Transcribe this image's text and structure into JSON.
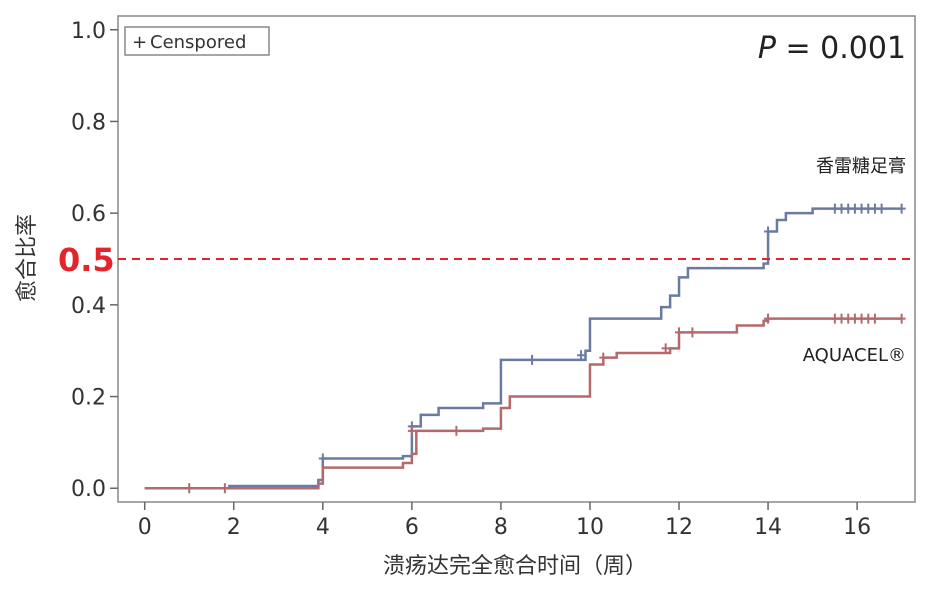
{
  "chart_data": {
    "type": "line",
    "step": true,
    "xlabel": "溃疡达完全愈合时间（周）",
    "ylabel": "愈合比率",
    "xlim": [
      -0.6,
      17.3
    ],
    "ylim": [
      -0.03,
      1.03
    ],
    "xticks": [
      "0",
      "2",
      "4",
      "6",
      "8",
      "10",
      "12",
      "14",
      "16"
    ],
    "yticks": [
      "0.0",
      "0.2",
      "0.4",
      "0.6",
      "0.8",
      "1.0"
    ],
    "grid": false,
    "legend": {
      "placement": "top-left",
      "text": "Censpored",
      "marker": "+"
    },
    "annotation": {
      "p_label": "P",
      "p_text": " = 0.001"
    },
    "reference_line": {
      "y": 0.5,
      "label": "0.5",
      "color": "#e3242b",
      "style": "dashed"
    },
    "series": [
      {
        "name": "香雷糖足膏",
        "color": "#6a7aa3",
        "steps": [
          [
            0,
            0.0
          ],
          [
            1.9,
            0.005
          ],
          [
            3.9,
            0.018
          ],
          [
            4.0,
            0.065
          ],
          [
            5.8,
            0.07
          ],
          [
            6.0,
            0.135
          ],
          [
            6.2,
            0.16
          ],
          [
            6.6,
            0.175
          ],
          [
            7.6,
            0.185
          ],
          [
            8.0,
            0.28
          ],
          [
            9.9,
            0.3
          ],
          [
            10.0,
            0.37
          ],
          [
            11.6,
            0.395
          ],
          [
            11.8,
            0.42
          ],
          [
            12.0,
            0.46
          ],
          [
            12.2,
            0.48
          ],
          [
            13.9,
            0.49
          ],
          [
            14.0,
            0.56
          ],
          [
            14.2,
            0.585
          ],
          [
            14.4,
            0.6
          ],
          [
            15.0,
            0.61
          ],
          [
            17.0,
            0.61
          ]
        ],
        "censored": [
          [
            4.0,
            0.065
          ],
          [
            6.0,
            0.135
          ],
          [
            8.7,
            0.28
          ],
          [
            9.8,
            0.29
          ],
          [
            14.0,
            0.56
          ],
          [
            15.5,
            0.61
          ],
          [
            15.65,
            0.61
          ],
          [
            15.8,
            0.61
          ],
          [
            15.95,
            0.61
          ],
          [
            16.1,
            0.61
          ],
          [
            16.25,
            0.61
          ],
          [
            16.4,
            0.61
          ],
          [
            16.55,
            0.61
          ],
          [
            17.0,
            0.61
          ]
        ]
      },
      {
        "name": "AQUACEL®",
        "color": "#b5696b",
        "steps": [
          [
            0,
            0.0
          ],
          [
            3.9,
            0.01
          ],
          [
            4.0,
            0.045
          ],
          [
            5.8,
            0.055
          ],
          [
            6.0,
            0.075
          ],
          [
            6.1,
            0.125
          ],
          [
            7.6,
            0.13
          ],
          [
            8.0,
            0.175
          ],
          [
            8.2,
            0.2
          ],
          [
            10.0,
            0.27
          ],
          [
            10.3,
            0.285
          ],
          [
            10.6,
            0.295
          ],
          [
            11.8,
            0.305
          ],
          [
            12.0,
            0.34
          ],
          [
            13.3,
            0.355
          ],
          [
            13.9,
            0.365
          ],
          [
            14.0,
            0.37
          ],
          [
            17.0,
            0.37
          ]
        ],
        "censored": [
          [
            1.0,
            0.0
          ],
          [
            1.8,
            0.0
          ],
          [
            6.0,
            0.125
          ],
          [
            7.0,
            0.125
          ],
          [
            10.3,
            0.285
          ],
          [
            11.7,
            0.305
          ],
          [
            12.0,
            0.34
          ],
          [
            12.3,
            0.34
          ],
          [
            14.0,
            0.37
          ],
          [
            15.5,
            0.37
          ],
          [
            15.65,
            0.37
          ],
          [
            15.8,
            0.37
          ],
          [
            15.95,
            0.37
          ],
          [
            16.1,
            0.37
          ],
          [
            16.25,
            0.37
          ],
          [
            16.4,
            0.37
          ],
          [
            17.0,
            0.37
          ]
        ]
      }
    ]
  }
}
